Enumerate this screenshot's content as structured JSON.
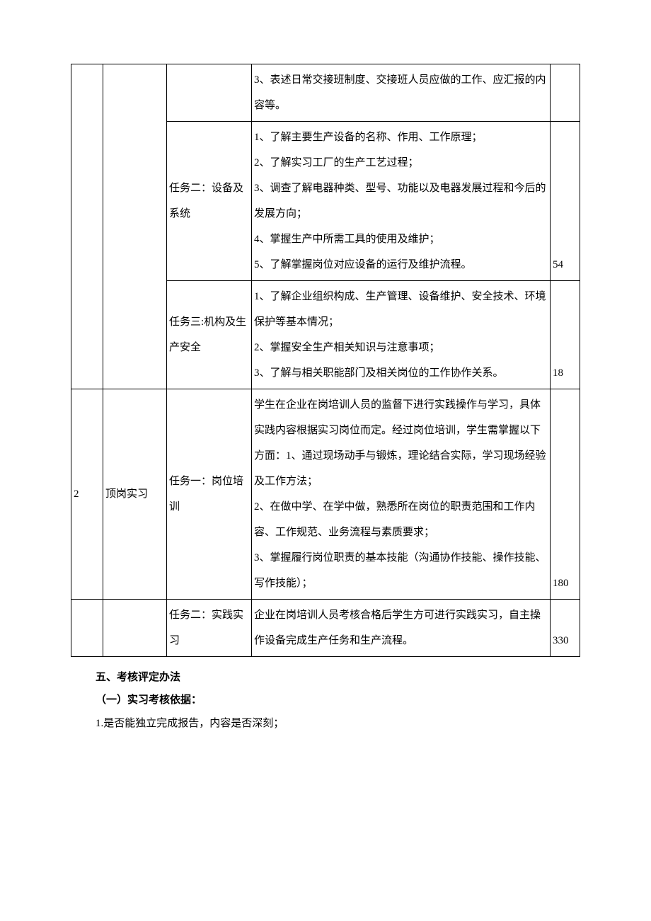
{
  "table": {
    "row1": {
      "desc": "3、表述日常交接班制度、交接班人员应做的工作、应汇报的内容等。"
    },
    "row2": {
      "task": "任务二：设备及系统",
      "desc": "1、了解主要生产设备的名称、作用、工作原理；\n2、了解实习工厂的生产工艺过程；\n3、调查了解电器种类、型号、功能以及电器发展过程和今后的发展方向；\n4、掌握生产中所需工具的使用及维护；\n5、了解掌握岗位对应设备的运行及维护流程。",
      "hours": "54"
    },
    "row3": {
      "task": "任务三:机构及生产安全",
      "desc": "1、了解企业组织构成、生产管理、设备维护、安全技术、环境保护等基本情况；\n2、掌握安全生产相关知识与注意事项；\n3、了解与相关职能部门及相关岗位的工作协作关系。",
      "hours": "18"
    },
    "row4": {
      "num": "2",
      "category": "顶岗实习",
      "task": "任务一：岗位培训",
      "desc": "学生在企业在岗培训人员的监督下进行实践操作与学习，具体实践内容根据实习岗位而定。经过岗位培训，学生需掌握以下方面：1、通过现场动手与锻炼，理论结合实际，学习现场经验及工作方法；\n2、在做中学、在学中做，熟悉所在岗位的职责范围和工作内容、工作规范、业务流程与素质要求；\n3、掌握履行岗位职责的基本技能（沟通协作技能、操作技能、写作技能）；",
      "hours": "180"
    },
    "row5": {
      "task": "任务二：实践实习",
      "desc": "企业在岗培训人员考核合格后学生方可进行实践实习，自主操作设备完成生产任务和生产流程。",
      "hours": "330"
    }
  },
  "below": {
    "heading1": "五、考核评定办法",
    "heading2": "（一）实习考核依据：",
    "item1": "1.是否能独立完成报告，内容是否深刻；"
  }
}
